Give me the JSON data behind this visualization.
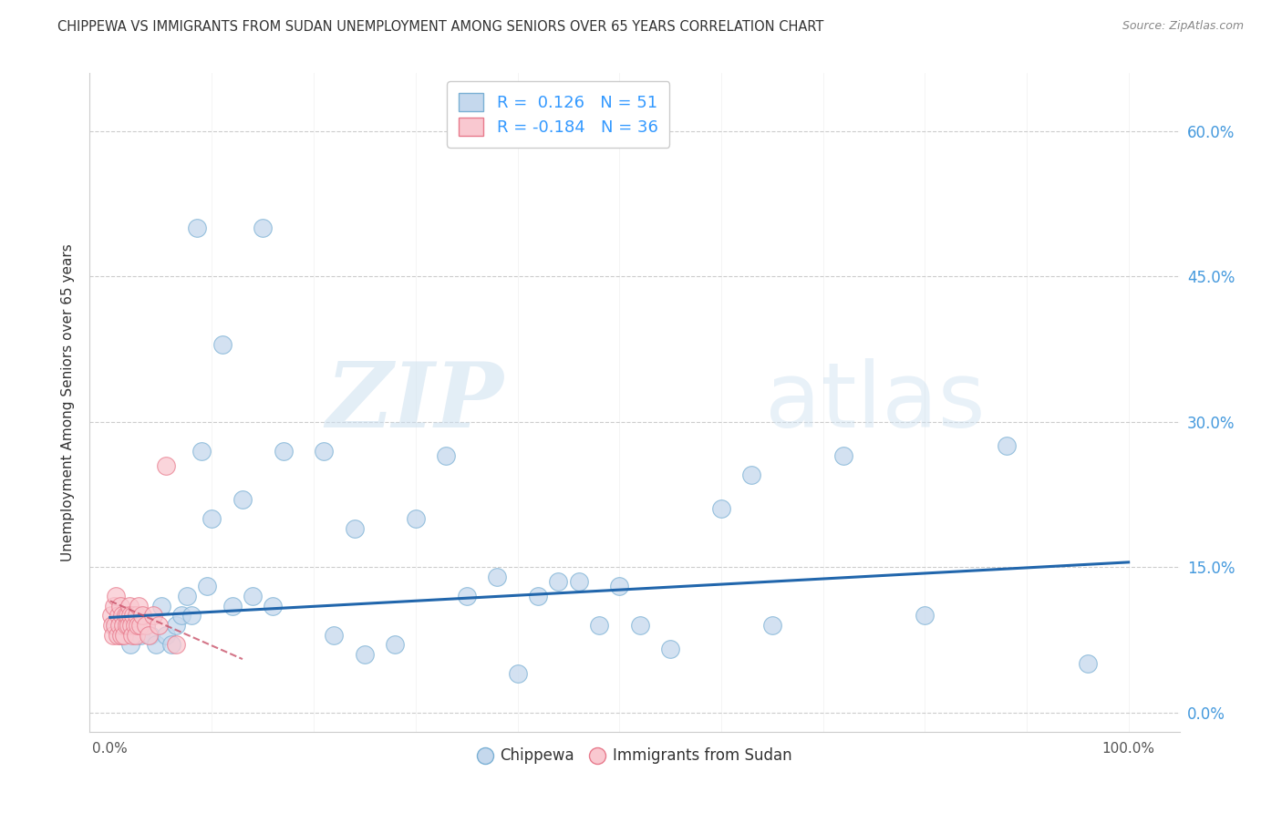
{
  "title": "CHIPPEWA VS IMMIGRANTS FROM SUDAN UNEMPLOYMENT AMONG SENIORS OVER 65 YEARS CORRELATION CHART",
  "source": "Source: ZipAtlas.com",
  "ylabel": "Unemployment Among Seniors over 65 years",
  "background_color": "#ffffff",
  "grid_color": "#cccccc",
  "chippewa_color": "#c5d8ed",
  "chippewa_edge_color": "#7ab0d4",
  "sudan_color": "#f9c8d0",
  "sudan_edge_color": "#e87a8c",
  "trend_blue_color": "#2166ac",
  "trend_pink_color": "#c9536a",
  "R_chippewa": 0.126,
  "N_chippewa": 51,
  "R_sudan": -0.184,
  "N_sudan": 36,
  "xlim": [
    -0.02,
    1.05
  ],
  "ylim": [
    -0.02,
    0.66
  ],
  "yticks": [
    0.0,
    0.15,
    0.3,
    0.45,
    0.6
  ],
  "ytick_labels": [
    "0.0%",
    "15.0%",
    "30.0%",
    "45.0%",
    "60.0%"
  ],
  "watermark_zip": "ZIP",
  "watermark_atlas": "atlas",
  "chippewa_x": [
    0.005,
    0.01,
    0.015,
    0.02,
    0.025,
    0.03,
    0.035,
    0.04,
    0.045,
    0.05,
    0.055,
    0.06,
    0.065,
    0.07,
    0.075,
    0.08,
    0.085,
    0.09,
    0.095,
    0.1,
    0.11,
    0.12,
    0.13,
    0.14,
    0.15,
    0.16,
    0.17,
    0.21,
    0.22,
    0.24,
    0.25,
    0.28,
    0.3,
    0.33,
    0.35,
    0.38,
    0.4,
    0.42,
    0.44,
    0.46,
    0.48,
    0.5,
    0.52,
    0.55,
    0.6,
    0.63,
    0.65,
    0.72,
    0.8,
    0.88,
    0.96
  ],
  "chippewa_y": [
    0.09,
    0.08,
    0.1,
    0.07,
    0.09,
    0.08,
    0.09,
    0.08,
    0.07,
    0.11,
    0.08,
    0.07,
    0.09,
    0.1,
    0.12,
    0.1,
    0.5,
    0.27,
    0.13,
    0.2,
    0.38,
    0.11,
    0.22,
    0.12,
    0.5,
    0.11,
    0.27,
    0.27,
    0.08,
    0.19,
    0.06,
    0.07,
    0.2,
    0.265,
    0.12,
    0.14,
    0.04,
    0.12,
    0.135,
    0.135,
    0.09,
    0.13,
    0.09,
    0.065,
    0.21,
    0.245,
    0.09,
    0.265,
    0.1,
    0.275,
    0.05
  ],
  "sudan_x": [
    0.001,
    0.002,
    0.003,
    0.004,
    0.005,
    0.006,
    0.007,
    0.008,
    0.009,
    0.01,
    0.011,
    0.012,
    0.013,
    0.014,
    0.015,
    0.016,
    0.017,
    0.018,
    0.019,
    0.02,
    0.021,
    0.022,
    0.023,
    0.024,
    0.025,
    0.026,
    0.027,
    0.028,
    0.03,
    0.032,
    0.035,
    0.038,
    0.042,
    0.048,
    0.055,
    0.065
  ],
  "sudan_y": [
    0.1,
    0.09,
    0.08,
    0.11,
    0.09,
    0.12,
    0.08,
    0.1,
    0.09,
    0.11,
    0.08,
    0.1,
    0.09,
    0.08,
    0.1,
    0.09,
    0.1,
    0.09,
    0.11,
    0.1,
    0.09,
    0.08,
    0.1,
    0.09,
    0.08,
    0.1,
    0.09,
    0.11,
    0.09,
    0.1,
    0.09,
    0.08,
    0.1,
    0.09,
    0.255,
    0.07
  ],
  "chip_trend_x": [
    0.0,
    1.0
  ],
  "chip_trend_y": [
    0.098,
    0.155
  ],
  "sudan_trend_x": [
    0.0,
    0.13
  ],
  "sudan_trend_y": [
    0.115,
    0.055
  ]
}
